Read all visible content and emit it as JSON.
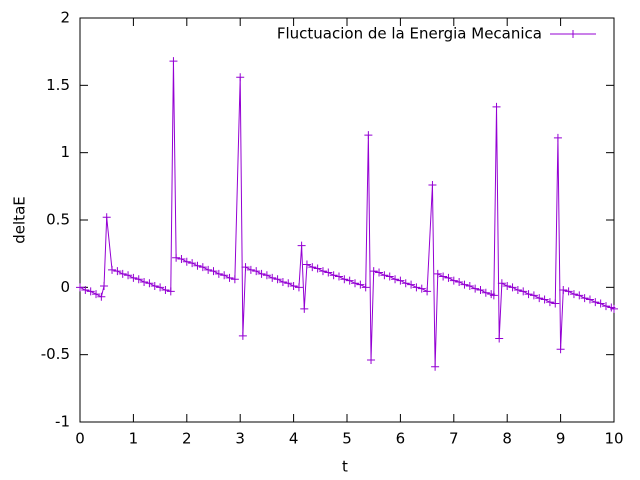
{
  "chart_data": {
    "type": "line",
    "xlabel": "t",
    "ylabel": "deltaE",
    "x": [
      0,
      0.1,
      0.2,
      0.3,
      0.4,
      0.45,
      0.5,
      0.6,
      0.7,
      0.8,
      0.9,
      1.0,
      1.1,
      1.2,
      1.3,
      1.4,
      1.5,
      1.6,
      1.7,
      1.75,
      1.8,
      1.9,
      2.0,
      2.1,
      2.2,
      2.3,
      2.4,
      2.5,
      2.6,
      2.7,
      2.8,
      2.9,
      3.0,
      3.05,
      3.1,
      3.2,
      3.3,
      3.4,
      3.5,
      3.6,
      3.7,
      3.8,
      3.9,
      4.0,
      4.1,
      4.15,
      4.2,
      4.25,
      4.35,
      4.45,
      4.55,
      4.65,
      4.75,
      4.85,
      4.95,
      5.05,
      5.15,
      5.25,
      5.35,
      5.4,
      5.45,
      5.5,
      5.6,
      5.7,
      5.8,
      5.9,
      6.0,
      6.1,
      6.2,
      6.3,
      6.4,
      6.5,
      6.6,
      6.65,
      6.7,
      6.8,
      6.9,
      7.0,
      7.1,
      7.2,
      7.3,
      7.4,
      7.5,
      7.6,
      7.7,
      7.75,
      7.8,
      7.85,
      7.9,
      8.0,
      8.1,
      8.2,
      8.3,
      8.4,
      8.5,
      8.6,
      8.7,
      8.8,
      8.9,
      8.95,
      9.0,
      9.05,
      9.15,
      9.25,
      9.35,
      9.45,
      9.55,
      9.65,
      9.75,
      9.85,
      9.95,
      10
    ],
    "series": [
      {
        "name": "Fluctuacion de la Energia Mecanica",
        "color": "#9400d3",
        "values": [
          0,
          -0.02,
          -0.03,
          -0.05,
          -0.07,
          0.01,
          0.52,
          0.13,
          0.12,
          0.1,
          0.09,
          0.07,
          0.06,
          0.04,
          0.03,
          0.01,
          0,
          -0.02,
          -0.03,
          1.68,
          0.22,
          0.21,
          0.19,
          0.18,
          0.16,
          0.15,
          0.13,
          0.12,
          0.1,
          0.09,
          0.07,
          0.06,
          1.56,
          -0.36,
          0.15,
          0.13,
          0.12,
          0.1,
          0.09,
          0.07,
          0.06,
          0.04,
          0.03,
          0.01,
          0,
          0.31,
          -0.16,
          0.17,
          0.15,
          0.14,
          0.12,
          0.11,
          0.09,
          0.08,
          0.06,
          0.05,
          0.03,
          0.02,
          0,
          1.13,
          -0.54,
          0.12,
          0.11,
          0.09,
          0.08,
          0.06,
          0.05,
          0.03,
          0.02,
          0,
          -0.01,
          -0.03,
          0.76,
          -0.59,
          0.1,
          0.08,
          0.07,
          0.05,
          0.04,
          0.02,
          0.01,
          -0.01,
          -0.02,
          -0.04,
          -0.05,
          -0.06,
          1.34,
          -0.38,
          0.03,
          0.01,
          0,
          -0.02,
          -0.03,
          -0.05,
          -0.06,
          -0.08,
          -0.09,
          -0.11,
          -0.12,
          1.11,
          -0.46,
          -0.02,
          -0.03,
          -0.05,
          -0.06,
          -0.08,
          -0.09,
          -0.11,
          -0.12,
          -0.14,
          -0.15,
          -0.16
        ]
      }
    ],
    "xlim": [
      0,
      10
    ],
    "ylim": [
      -1,
      2
    ],
    "xticks": [
      0,
      1,
      2,
      3,
      4,
      5,
      6,
      7,
      8,
      9,
      10
    ],
    "yticks": [
      -1,
      -0.5,
      0,
      0.5,
      1,
      1.5,
      2
    ],
    "grid": false,
    "legend": "top-right"
  }
}
